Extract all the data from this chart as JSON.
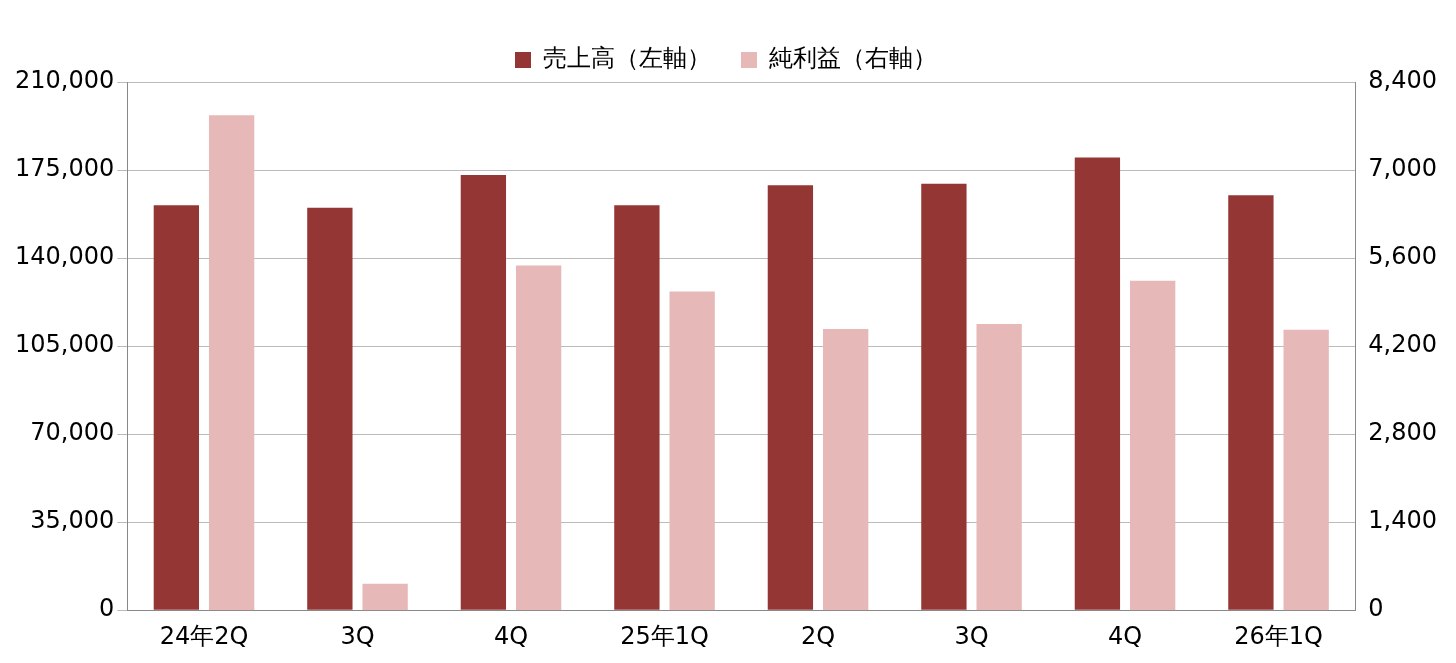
{
  "chart_data": {
    "type": "bar",
    "categories": [
      "24年2Q",
      "3Q",
      "4Q",
      "25年1Q",
      "2Q",
      "3Q",
      "4Q",
      "26年1Q"
    ],
    "series": [
      {
        "name": "売上高（左軸）",
        "color": "#943634",
        "values": [
          161000,
          160000,
          173000,
          161000,
          169000,
          169500,
          180000,
          165000
        ]
      },
      {
        "name": "純利益（右軸）",
        "color": "#e6b9b8",
        "axis": "y2",
        "values": [
          7870,
          420,
          5480,
          5070,
          4470,
          4550,
          5240,
          4460
        ]
      }
    ],
    "ylim": [
      0,
      210000
    ],
    "yticks": [
      0,
      {
        "value": 35000,
        "label": "35,000"
      },
      {
        "value": 70000,
        "label": "70,000"
      },
      {
        "value": 105000,
        "label": "105,000"
      },
      {
        "value": 140000,
        "label": "140,000"
      },
      {
        "value": 175000,
        "label": "175,000"
      },
      {
        "value": 210000,
        "label": "210,000"
      }
    ],
    "y2lim": [
      0,
      8400
    ],
    "y2ticks": [
      0,
      {
        "value": 1400,
        "label": "1,400"
      },
      {
        "value": 2800,
        "label": "2,800"
      },
      {
        "value": 4200,
        "label": "4,200"
      },
      {
        "value": 5600,
        "label": "5,600"
      },
      {
        "value": 7000,
        "label": "7,000"
      },
      {
        "value": 8400,
        "label": "8,400"
      }
    ],
    "grid": "y",
    "legend": "top"
  }
}
